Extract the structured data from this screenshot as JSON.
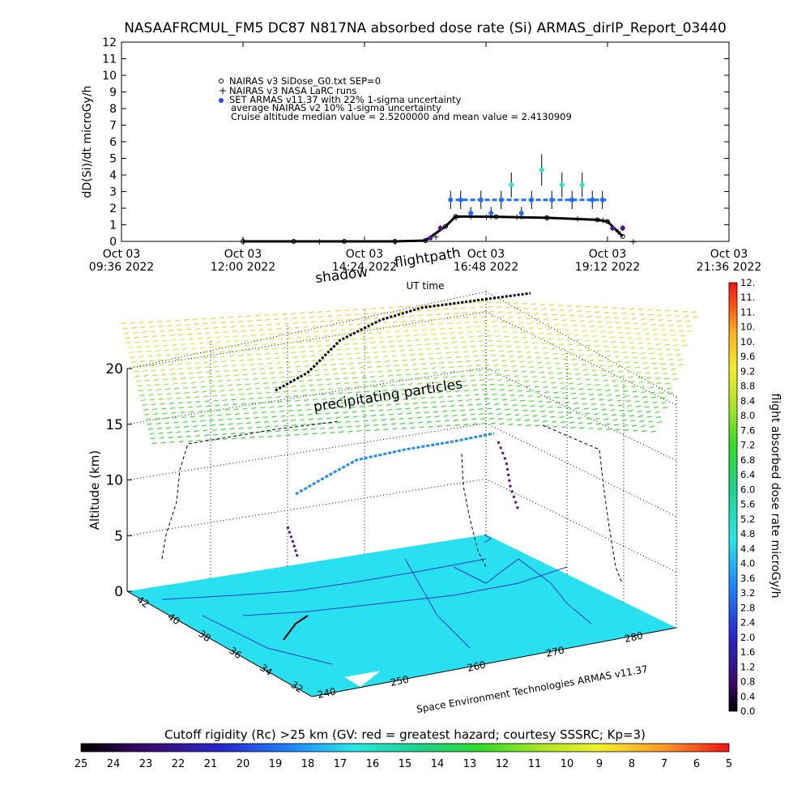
{
  "title": "NASAAFRCMUL_FM5 DC87 N817NA absorbed dose rate (Si) ARMAS_dirIP_Report_03440",
  "colors": {
    "background": "#ffffff",
    "nairas_line": "#000000",
    "armas_points": "#1e6fff",
    "armas_cyan": "#28e6d2",
    "armas_purple": "#50188c",
    "surface": "#28e0f0",
    "accent_text": "#000000"
  },
  "top_chart": {
    "ylabel": "dD(Si)/dt microGy/h",
    "xlabel": "UT time",
    "legend": [
      "NAIRAS v3 SiDose_G0.txt SEP=0",
      "NAIRAS v3 NASA LaRC runs",
      "SET ARMAS v11.37 with 22% 1-sigma uncertainty",
      "average NAIRAS v2 10% 1-sigma uncertainty",
      "Cruise altitude median value = 2.5200000 and mean value = 2.4130909"
    ],
    "xticks": [
      {
        "l1": "Oct 03",
        "l2": "09:36 2022"
      },
      {
        "l1": "Oct 03",
        "l2": "12:00 2022"
      },
      {
        "l1": "Oct 03",
        "l2": "14:24 2022"
      },
      {
        "l1": "Oct 03",
        "l2": "16:48 2022"
      },
      {
        "l1": "Oct 03",
        "l2": "19:12 2022"
      },
      {
        "l1": "Oct 03",
        "l2": "21:36 2022"
      }
    ],
    "yticks": [
      "0",
      "1",
      "2",
      "3",
      "4",
      "5",
      "6",
      "7",
      "8",
      "9",
      "10",
      "11",
      "12"
    ]
  },
  "chart_data": {
    "type": "scatter",
    "title": "NASAAFRCMUL_FM5 DC87 N817NA absorbed dose rate (Si) ARMAS_dirIP_Report_03440",
    "xlabel": "UT time",
    "ylabel": "dD(Si)/dt microGy/h",
    "x_unit": "hours UT, 2022-10-03",
    "xlim": [
      9.6,
      21.6
    ],
    "ylim": [
      0,
      12
    ],
    "grid": false,
    "legend_position": "top-left",
    "series": [
      {
        "name": "NAIRAS v3 SiDose_G0.txt SEP=0",
        "x": [
          12.0,
          13.0,
          14.0,
          15.0,
          15.6,
          16.0,
          16.2,
          17.0,
          18.0,
          19.0,
          19.2,
          19.5
        ],
        "y": [
          0.0,
          0.0,
          0.0,
          0.0,
          0.05,
          0.9,
          1.5,
          1.48,
          1.42,
          1.3,
          1.2,
          0.3
        ]
      },
      {
        "name": "NAIRAS v3 NASA LaRC runs",
        "x": [
          12.0,
          13.5,
          15.0,
          15.8,
          16.2,
          16.8,
          17.4,
          18.0,
          18.6,
          19.1,
          19.4,
          19.7
        ],
        "y": [
          0.0,
          0.0,
          0.0,
          0.3,
          1.45,
          1.5,
          1.48,
          1.44,
          1.38,
          1.3,
          0.6,
          0.0
        ]
      },
      {
        "name": "SET ARMAS v11.37 with 22% 1-sigma uncertainty",
        "x": [
          15.7,
          15.9,
          16.1,
          16.3,
          16.5,
          16.7,
          16.9,
          17.1,
          17.3,
          17.5,
          17.7,
          17.9,
          18.1,
          18.3,
          18.5,
          18.7,
          18.9,
          19.1,
          19.3,
          19.5
        ],
        "y": [
          0.2,
          0.8,
          2.5,
          2.5,
          1.7,
          2.5,
          1.7,
          2.5,
          3.4,
          1.7,
          2.5,
          4.3,
          2.5,
          3.4,
          2.5,
          3.4,
          2.5,
          2.5,
          0.8,
          0.8
        ]
      },
      {
        "name": "average NAIRAS v2 10% 1-sigma uncertainty",
        "x": [
          16.2,
          17.0,
          17.8,
          18.6,
          19.2
        ],
        "y": [
          2.5,
          2.5,
          2.5,
          2.5,
          2.5
        ]
      }
    ],
    "cruise_altitude_median": 2.52,
    "cruise_altitude_mean": 2.4130909
  },
  "plot3d": {
    "zlabel": "Altitude (km)",
    "zticks": [
      "0",
      "5",
      "10",
      "15",
      "20"
    ],
    "lat_ticks": [
      "42",
      "40",
      "38",
      "36",
      "34",
      "32"
    ],
    "lon_ticks": [
      "240",
      "250",
      "260",
      "270",
      "280"
    ],
    "annotations": {
      "shadow": "shadow",
      "flightpath": "flightpath",
      "precip": "precipitating particles",
      "credit": "Space Environment Technologies ARMAS v11.37"
    }
  },
  "colorbar_right": {
    "label": "flight absorbed dose rate microGy/h",
    "ticks": [
      "0.0",
      "0.4",
      "0.8",
      "1.2",
      "1.6",
      "2.0",
      "2.4",
      "2.8",
      "3.2",
      "3.6",
      "4.0",
      "4.4",
      "4.8",
      "5.2",
      "5.6",
      "6.0",
      "6.4",
      "6.8",
      "7.2",
      "7.6",
      "8.0",
      "8.4",
      "8.8",
      "9.2",
      "9.6",
      "10.",
      "10.",
      "11.",
      "11.",
      "12."
    ]
  },
  "colorbar_bottom": {
    "title": "Cutoff rigidity (Rc) >25 km (GV: red = greatest hazard; courtesy SSSRC; Kp=3)",
    "ticks": [
      "25",
      "24",
      "23",
      "22",
      "21",
      "20",
      "19",
      "18",
      "17",
      "16",
      "15",
      "14",
      "13",
      "12",
      "11",
      "10",
      "9",
      "8",
      "7",
      "6",
      "5"
    ]
  }
}
